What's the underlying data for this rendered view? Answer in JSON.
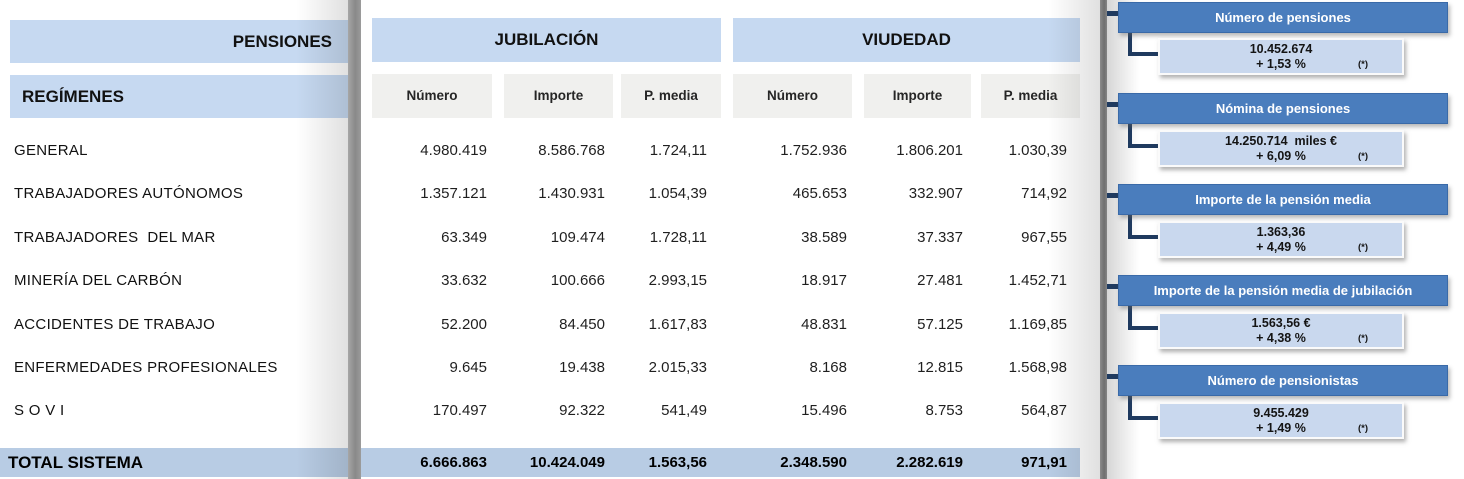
{
  "colors": {
    "header_light_blue": "#c6d9f1",
    "subheader_gray": "#f0f0ee",
    "total_band_blue": "#b8cce4",
    "sidebar_header_blue": "#4a7dbd",
    "sidebar_box_blue": "#c9d8ee",
    "connector_navy": "#1f3a5f",
    "divider_gray": "#909090"
  },
  "left_pane": {
    "title": "PENSIONES",
    "section_header": "REGÍMENES"
  },
  "table": {
    "groups": [
      {
        "label": "JUBILACIÓN",
        "columns": [
          "Número",
          "Importe",
          "P. media"
        ]
      },
      {
        "label": "VIUDEDAD",
        "columns": [
          "Número",
          "Importe",
          "P. media"
        ]
      }
    ],
    "rows": [
      {
        "label": "GENERAL",
        "jubilacion": [
          "4.980.419",
          "8.586.768",
          "1.724,11"
        ],
        "viudedad": [
          "1.752.936",
          "1.806.201",
          "1.030,39"
        ]
      },
      {
        "label": "TRABAJADORES AUTÓNOMOS",
        "jubilacion": [
          "1.357.121",
          "1.430.931",
          "1.054,39"
        ],
        "viudedad": [
          "465.653",
          "332.907",
          "714,92"
        ]
      },
      {
        "label": "TRABAJADORES  DEL MAR",
        "jubilacion": [
          "63.349",
          "109.474",
          "1.728,11"
        ],
        "viudedad": [
          "38.589",
          "37.337",
          "967,55"
        ]
      },
      {
        "label": "MINERÍA DEL CARBÓN",
        "jubilacion": [
          "33.632",
          "100.666",
          "2.993,15"
        ],
        "viudedad": [
          "18.917",
          "27.481",
          "1.452,71"
        ]
      },
      {
        "label": "ACCIDENTES DE TRABAJO",
        "jubilacion": [
          "52.200",
          "84.450",
          "1.617,83"
        ],
        "viudedad": [
          "48.831",
          "57.125",
          "1.169,85"
        ]
      },
      {
        "label": "ENFERMEDADES PROFESIONALES",
        "jubilacion": [
          "9.645",
          "19.438",
          "2.015,33"
        ],
        "viudedad": [
          "8.168",
          "12.815",
          "1.568,98"
        ]
      },
      {
        "label": "S O V I",
        "jubilacion": [
          "170.497",
          "92.322",
          "541,49"
        ],
        "viudedad": [
          "15.496",
          "8.753",
          "564,87"
        ]
      }
    ],
    "total": {
      "label": "TOTAL SISTEMA",
      "jubilacion": [
        "6.666.863",
        "10.424.049",
        "1.563,56"
      ],
      "viudedad": [
        "2.348.590",
        "2.282.619",
        "971,91"
      ]
    }
  },
  "sidebar": {
    "panels": [
      {
        "title": "Número de pensiones",
        "value": "10.452.674",
        "change": "+ 1,53 %",
        "footnote": "(*)"
      },
      {
        "title": "Nómina de pensiones",
        "value": "14.250.714  miles €",
        "change": "+ 6,09 %",
        "footnote": "(*)"
      },
      {
        "title": "Importe de la pensión media",
        "value": "1.363,36",
        "change": "+ 4,49 %",
        "footnote": "(*)"
      },
      {
        "title": "Importe de la pensión media de jubilación",
        "value": "1.563,56 €",
        "change": "+ 4,38 %",
        "footnote": "(*)"
      },
      {
        "title": "Número de pensionistas",
        "value": "9.455.429",
        "change": "+ 1,49 %",
        "footnote": "(*)"
      }
    ]
  }
}
